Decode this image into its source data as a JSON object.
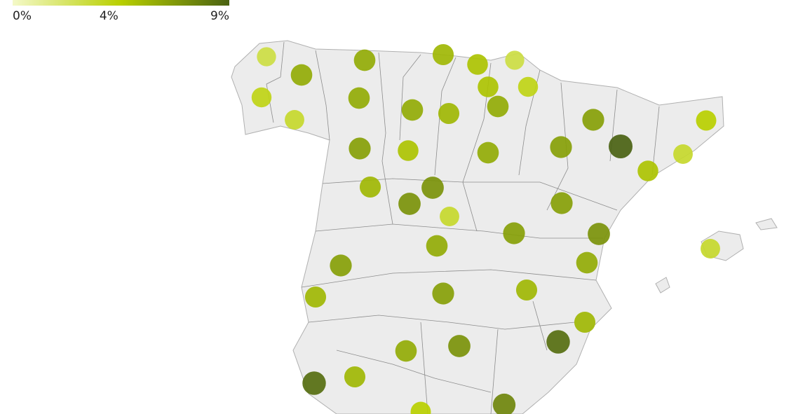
{
  "legend": {
    "colors": [
      "#f4f9c8",
      "#b8cf00",
      "#4a6212"
    ],
    "ticks": [
      {
        "value": 0,
        "label": "0%"
      },
      {
        "value": 4,
        "label": "4%"
      },
      {
        "value": 9,
        "label": "9%"
      }
    ]
  },
  "points": {
    "values": [
      3,
      6,
      4,
      3.5,
      6,
      6,
      5.5,
      5,
      3,
      5,
      4,
      6,
      5.5,
      6,
      6.5,
      4.5,
      6.5,
      5,
      6,
      6.5,
      9,
      3.5,
      5,
      5.5,
      7,
      7,
      3.5,
      6.5,
      6.5,
      7,
      6,
      3.5,
      6.5,
      6,
      5.5,
      5.5,
      6.5,
      5.5,
      8.5,
      6,
      7,
      8.5,
      5.5,
      4.5,
      7.5
    ]
  }
}
